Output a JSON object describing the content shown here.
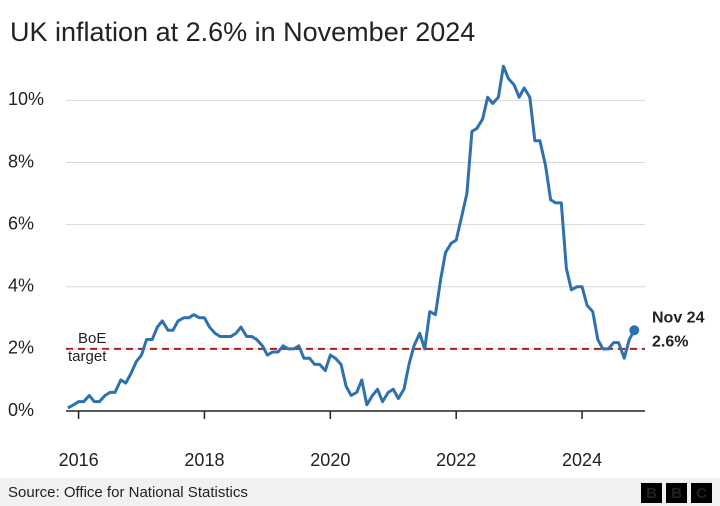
{
  "chart_data": {
    "type": "line",
    "title": "UK inflation at 2.6% in November 2024",
    "source": "Source: Office for National Statistics",
    "logo": [
      "B",
      "B",
      "C"
    ],
    "color": "#2f70af",
    "grid": true,
    "xlim": [
      2015.8,
      2025.0
    ],
    "ylim": [
      0,
      11.3
    ],
    "xticks": [
      2016,
      2018,
      2020,
      2022,
      2024
    ],
    "yticks": [
      {
        "value": 0,
        "label": "0%"
      },
      {
        "value": 2,
        "label": "2%"
      },
      {
        "value": 4,
        "label": "4%"
      },
      {
        "value": 6,
        "label": "6%"
      },
      {
        "value": 8,
        "label": "8%"
      },
      {
        "value": 10,
        "label": "10%"
      }
    ],
    "target_line": {
      "value": 2,
      "label": [
        "BoE",
        "target"
      ],
      "color": "#b31b1b"
    },
    "end_annotation": {
      "text": "Nov 24",
      "value_label": "2.6%"
    },
    "x": [
      2015.83,
      2015.92,
      2016.0,
      2016.08,
      2016.17,
      2016.25,
      2016.33,
      2016.42,
      2016.5,
      2016.58,
      2016.67,
      2016.75,
      2016.83,
      2016.92,
      2017.0,
      2017.08,
      2017.17,
      2017.25,
      2017.33,
      2017.42,
      2017.5,
      2017.58,
      2017.67,
      2017.75,
      2017.83,
      2017.92,
      2018.0,
      2018.08,
      2018.17,
      2018.25,
      2018.33,
      2018.42,
      2018.5,
      2018.58,
      2018.67,
      2018.75,
      2018.83,
      2018.92,
      2019.0,
      2019.08,
      2019.17,
      2019.25,
      2019.33,
      2019.42,
      2019.5,
      2019.58,
      2019.67,
      2019.75,
      2019.83,
      2019.92,
      2020.0,
      2020.08,
      2020.17,
      2020.25,
      2020.33,
      2020.42,
      2020.5,
      2020.58,
      2020.67,
      2020.75,
      2020.83,
      2020.92,
      2021.0,
      2021.08,
      2021.17,
      2021.25,
      2021.33,
      2021.42,
      2021.5,
      2021.58,
      2021.67,
      2021.75,
      2021.83,
      2021.92,
      2022.0,
      2022.08,
      2022.17,
      2022.25,
      2022.33,
      2022.42,
      2022.5,
      2022.58,
      2022.67,
      2022.75,
      2022.83,
      2022.92,
      2023.0,
      2023.08,
      2023.17,
      2023.25,
      2023.33,
      2023.42,
      2023.5,
      2023.58,
      2023.67,
      2023.75,
      2023.83,
      2023.92,
      2024.0,
      2024.08,
      2024.17,
      2024.25,
      2024.33,
      2024.42,
      2024.5,
      2024.58,
      2024.67,
      2024.75,
      2024.83
    ],
    "values": [
      0.1,
      0.2,
      0.3,
      0.3,
      0.5,
      0.3,
      0.3,
      0.5,
      0.6,
      0.6,
      1.0,
      0.9,
      1.2,
      1.6,
      1.8,
      2.3,
      2.3,
      2.7,
      2.9,
      2.6,
      2.6,
      2.9,
      3.0,
      3.0,
      3.1,
      3.0,
      3.0,
      2.7,
      2.5,
      2.4,
      2.4,
      2.4,
      2.5,
      2.7,
      2.4,
      2.4,
      2.3,
      2.1,
      1.8,
      1.9,
      1.9,
      2.1,
      2.0,
      2.0,
      2.1,
      1.7,
      1.7,
      1.5,
      1.5,
      1.3,
      1.8,
      1.7,
      1.5,
      0.8,
      0.5,
      0.6,
      1.0,
      0.2,
      0.5,
      0.7,
      0.3,
      0.6,
      0.7,
      0.4,
      0.7,
      1.5,
      2.1,
      2.5,
      2.0,
      3.2,
      3.1,
      4.2,
      5.1,
      5.4,
      5.5,
      6.2,
      7.0,
      9.0,
      9.1,
      9.4,
      10.1,
      9.9,
      10.1,
      11.1,
      10.7,
      10.5,
      10.1,
      10.4,
      10.1,
      8.7,
      8.7,
      7.9,
      6.8,
      6.7,
      6.7,
      4.6,
      3.9,
      4.0,
      4.0,
      3.4,
      3.2,
      2.3,
      2.0,
      2.0,
      2.2,
      2.2,
      1.7,
      2.3,
      2.6
    ]
  }
}
